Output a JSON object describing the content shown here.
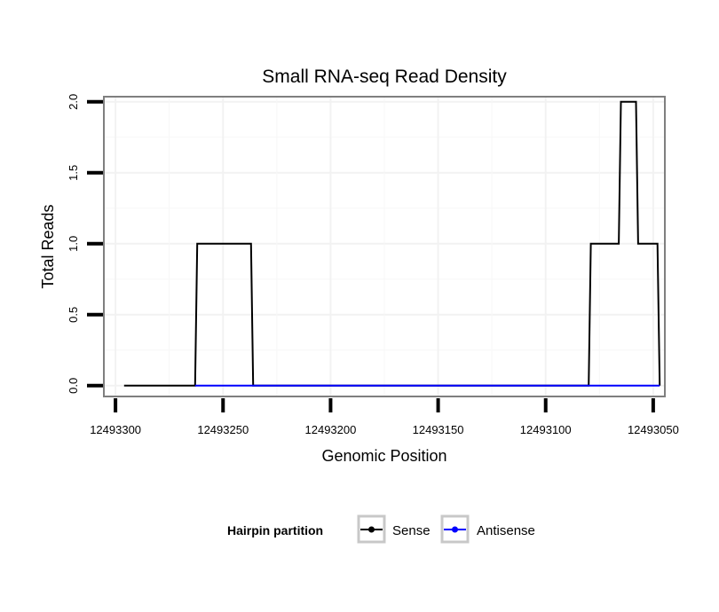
{
  "chart_data": {
    "type": "line",
    "title": "Small RNA-seq Read Density",
    "xlabel": "Genomic Position",
    "ylabel": "Total Reads",
    "xlim": [
      12493305,
      12493045
    ],
    "x_reversed": true,
    "ylim": [
      -0.07,
      2.03
    ],
    "x_ticks": [
      12493300,
      12493250,
      12493200,
      12493150,
      12493100,
      12493050
    ],
    "x_tick_labels": [
      "12493300",
      "12493250",
      "12493200",
      "12493150",
      "12493100",
      "12493050"
    ],
    "y_ticks": [
      0,
      0.5,
      1,
      1.5,
      2
    ],
    "y_tick_labels": [
      "0.0",
      "0.5",
      "1.0",
      "1.5",
      "2.0"
    ],
    "grid": true,
    "legend": {
      "title": "Hairpin partition",
      "position": "bottom",
      "entries": [
        "Sense",
        "Antisense"
      ]
    },
    "series": [
      {
        "name": "Sense",
        "color": "#000000",
        "x": [
          12493296,
          12493263,
          12493262,
          12493237,
          12493236,
          12493080,
          12493079,
          12493066,
          12493065,
          12493058,
          12493057,
          12493048,
          12493047
        ],
        "values": [
          0,
          0,
          1,
          1,
          0,
          0,
          1,
          1,
          2,
          2,
          1,
          1,
          0
        ]
      },
      {
        "name": "Antisense",
        "color": "#0000ff",
        "x": [
          12493263,
          12493236,
          12493080,
          12493047
        ],
        "values": [
          0,
          0,
          0,
          0
        ]
      }
    ]
  }
}
